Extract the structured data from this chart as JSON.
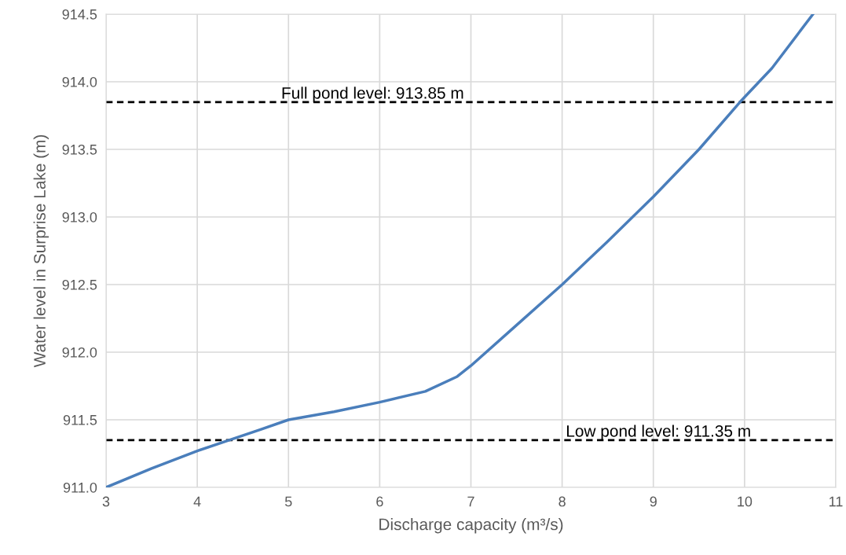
{
  "chart_data": {
    "type": "line",
    "xlabel": "Discharge capacity (m³/s)",
    "ylabel": "Water level in Surprise Lake (m)",
    "x": [
      3,
      3.5,
      4,
      4.35,
      4.7,
      5,
      5.5,
      6,
      6.5,
      6.85,
      7,
      7.5,
      8,
      8.5,
      9,
      9.5,
      9.95,
      10.3,
      10.75
    ],
    "series": [
      {
        "color": "#4a7ebb",
        "values": [
          911.0,
          911.14,
          911.27,
          911.35,
          911.43,
          911.5,
          911.56,
          911.63,
          911.71,
          911.82,
          911.9,
          912.2,
          912.5,
          912.82,
          913.15,
          913.5,
          913.85,
          914.1,
          914.5
        ]
      }
    ],
    "xlim": [
      3,
      11
    ],
    "xticks": [
      3,
      4,
      5,
      6,
      7,
      8,
      9,
      10,
      11
    ],
    "ylim": [
      911.0,
      914.5
    ],
    "yticks": [
      {
        "value": 911.0,
        "label": "911.0"
      },
      {
        "value": 911.5,
        "label": "911.5"
      },
      {
        "value": 912.0,
        "label": "912.0"
      },
      {
        "value": 912.5,
        "label": "912.5"
      },
      {
        "value": 913.0,
        "label": "913.0"
      },
      {
        "value": 913.5,
        "label": "913.5"
      },
      {
        "value": 914.0,
        "label": "914.0"
      },
      {
        "value": 914.5,
        "label": "914.5"
      }
    ],
    "ref_lines": [
      {
        "axis": "y",
        "value": 913.85,
        "label": "Full pond level: 913.85 m",
        "color": "#000000",
        "line_style": "dashed"
      },
      {
        "axis": "y",
        "value": 911.35,
        "label": "Low pond level: 911.35 m",
        "color": "#000000",
        "line_style": "dashed"
      }
    ],
    "grid": true,
    "legend": false,
    "marker": "none",
    "line_style": "solid"
  }
}
